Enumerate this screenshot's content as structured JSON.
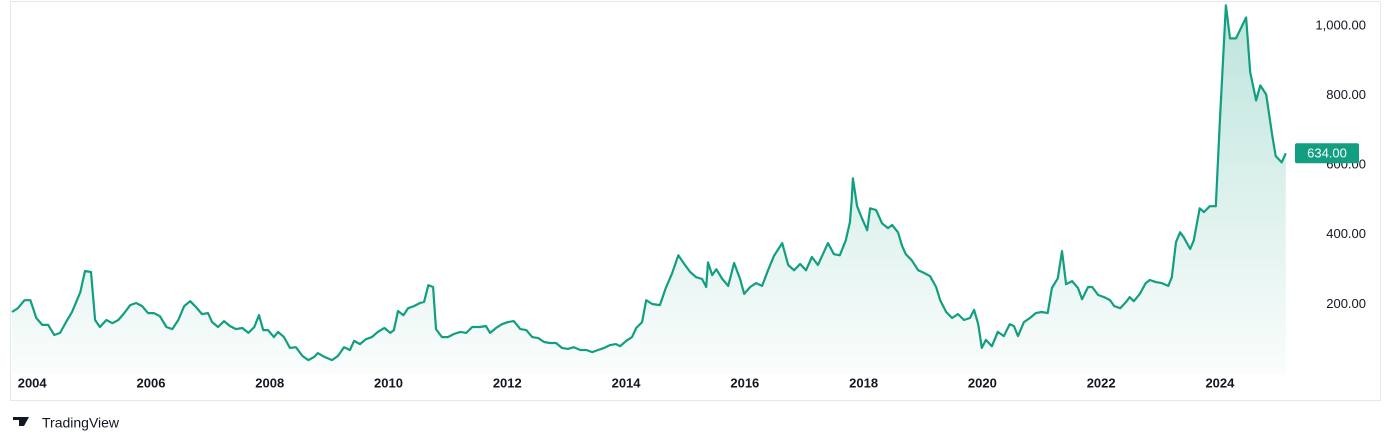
{
  "chart_data": {
    "type": "area",
    "brand": "TradingView",
    "color": "#129e80",
    "x": [
      2003.66,
      2003.76,
      2003.87,
      2003.97,
      2004.07,
      2004.17,
      2004.27,
      2004.37,
      2004.47,
      2004.57,
      2004.67,
      2004.81,
      2004.89,
      2004.99,
      2005.06,
      2005.14,
      2005.25,
      2005.35,
      2005.45,
      2005.55,
      2005.65,
      2005.75,
      2005.85,
      2005.95,
      2006.05,
      2006.15,
      2006.26,
      2006.36,
      2006.46,
      2006.56,
      2006.66,
      2006.76,
      2006.86,
      2006.96,
      2007.03,
      2007.13,
      2007.23,
      2007.33,
      2007.43,
      2007.54,
      2007.64,
      2007.74,
      2007.82,
      2007.89,
      2007.97,
      2008.07,
      2008.14,
      2008.24,
      2008.34,
      2008.44,
      2008.55,
      2008.65,
      2008.75,
      2008.81,
      2008.92,
      2009.05,
      2009.15,
      2009.25,
      2009.35,
      2009.42,
      2009.52,
      2009.62,
      2009.72,
      2009.82,
      2009.93,
      2010.03,
      2010.09,
      2010.16,
      2010.25,
      2010.33,
      2010.43,
      2010.53,
      2010.6,
      2010.67,
      2010.75,
      2010.8,
      2010.9,
      2011.0,
      2011.1,
      2011.21,
      2011.31,
      2011.41,
      2011.54,
      2011.64,
      2011.71,
      2011.81,
      2011.91,
      2012.01,
      2012.11,
      2012.22,
      2012.32,
      2012.42,
      2012.52,
      2012.62,
      2012.72,
      2012.82,
      2012.92,
      2013.02,
      2013.12,
      2013.23,
      2013.33,
      2013.43,
      2013.53,
      2013.63,
      2013.73,
      2013.83,
      2013.9,
      2014.0,
      2014.1,
      2014.17,
      2014.27,
      2014.34,
      2014.44,
      2014.57,
      2014.67,
      2014.77,
      2014.88,
      2014.98,
      2015.08,
      2015.18,
      2015.28,
      2015.35,
      2015.38,
      2015.45,
      2015.52,
      2015.62,
      2015.72,
      2015.82,
      2015.92,
      2015.99,
      2016.09,
      2016.19,
      2016.29,
      2016.39,
      2016.49,
      2016.63,
      2016.73,
      2016.83,
      2016.93,
      2017.03,
      2017.13,
      2017.23,
      2017.33,
      2017.4,
      2017.5,
      2017.6,
      2017.7,
      2017.77,
      2017.8,
      2017.82,
      2017.89,
      2017.97,
      2018.06,
      2018.11,
      2018.21,
      2018.31,
      2018.41,
      2018.48,
      2018.58,
      2018.65,
      2018.71,
      2018.81,
      2018.92,
      2019.02,
      2019.12,
      2019.22,
      2019.29,
      2019.39,
      2019.49,
      2019.59,
      2019.69,
      2019.79,
      2019.86,
      2019.93,
      2019.99,
      2020.06,
      2020.16,
      2020.26,
      2020.36,
      2020.46,
      2020.53,
      2020.6,
      2020.7,
      2020.8,
      2020.9,
      2021.0,
      2021.1,
      2021.17,
      2021.27,
      2021.34,
      2021.41,
      2021.51,
      2021.61,
      2021.68,
      2021.78,
      2021.85,
      2021.95,
      2022.05,
      2022.15,
      2022.22,
      2022.32,
      2022.42,
      2022.48,
      2022.55,
      2022.65,
      2022.75,
      2022.82,
      2022.92,
      2023.02,
      2023.13,
      2023.19,
      2023.26,
      2023.33,
      2023.39,
      2023.5,
      2023.56,
      2023.66,
      2023.73,
      2023.83,
      2023.93,
      2024.0,
      2024.1,
      2024.17,
      2024.27,
      2024.37,
      2024.44,
      2024.51,
      2024.61,
      2024.68,
      2024.78,
      2024.88,
      2024.94,
      2025.04,
      2025.11
    ],
    "values": [
      178,
      189,
      212,
      212,
      161,
      141,
      141,
      112,
      118,
      149,
      178,
      235,
      296,
      293,
      155,
      135,
      155,
      146,
      155,
      175,
      198,
      204,
      195,
      175,
      175,
      166,
      135,
      129,
      155,
      195,
      209,
      192,
      172,
      175,
      149,
      135,
      152,
      138,
      129,
      132,
      118,
      135,
      169,
      126,
      126,
      106,
      121,
      106,
      75,
      77,
      52,
      40,
      49,
      60,
      49,
      40,
      52,
      77,
      69,
      95,
      86,
      100,
      106,
      121,
      132,
      118,
      126,
      181,
      169,
      189,
      195,
      204,
      207,
      255,
      250,
      129,
      106,
      106,
      115,
      121,
      118,
      135,
      135,
      138,
      118,
      132,
      143,
      149,
      152,
      129,
      126,
      106,
      103,
      92,
      89,
      89,
      75,
      72,
      77,
      69,
      69,
      63,
      69,
      75,
      83,
      86,
      80,
      95,
      106,
      132,
      149,
      212,
      201,
      198,
      247,
      287,
      341,
      316,
      293,
      278,
      273,
      250,
      321,
      284,
      301,
      273,
      253,
      319,
      273,
      230,
      250,
      261,
      253,
      298,
      339,
      376,
      313,
      298,
      316,
      298,
      336,
      313,
      350,
      376,
      344,
      341,
      384,
      436,
      499,
      562,
      482,
      448,
      413,
      476,
      471,
      433,
      419,
      428,
      407,
      367,
      344,
      327,
      298,
      290,
      281,
      250,
      212,
      178,
      161,
      172,
      155,
      161,
      184,
      143,
      75,
      98,
      80,
      121,
      109,
      143,
      138,
      109,
      149,
      161,
      175,
      178,
      175,
      247,
      275,
      353,
      258,
      267,
      247,
      215,
      250,
      250,
      227,
      221,
      212,
      195,
      189,
      207,
      221,
      209,
      230,
      261,
      270,
      264,
      261,
      253,
      278,
      379,
      407,
      393,
      359,
      384,
      476,
      465,
      482,
      482,
      729,
      1059,
      964,
      964,
      999,
      1024,
      867,
      786,
      829,
      803,
      686,
      626,
      608,
      634
    ],
    "last_label": "634.00",
    "xlim": [
      2003.66,
      2025.18
    ],
    "xticks": [
      2004,
      2006,
      2008,
      2010,
      2012,
      2014,
      2016,
      2018,
      2020,
      2022,
      2024
    ],
    "ylim": [
      0,
      1060
    ],
    "yticks": [
      {
        "value": 200,
        "label": "200.00"
      },
      {
        "value": 400,
        "label": "400.00"
      },
      {
        "value": 600,
        "label": "600.00"
      },
      {
        "value": 800,
        "label": "800.00"
      },
      {
        "value": 1000,
        "label": "1,000.00"
      }
    ],
    "grid": false
  }
}
